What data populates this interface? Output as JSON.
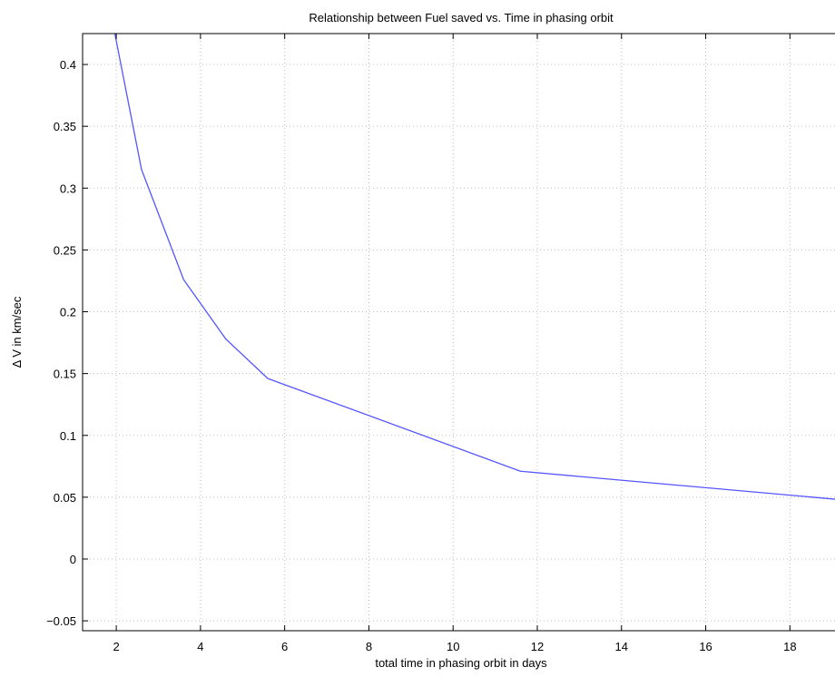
{
  "chart_data": {
    "type": "line",
    "title": "Relationship between Fuel saved vs. Time in phasing orbit",
    "xlabel": "total time in phasing orbit in days",
    "ylabel": "Δ V in km/sec",
    "xlim": [
      1.2,
      19.2
    ],
    "ylim": [
      -0.058,
      0.425
    ],
    "x_ticks": [
      2,
      4,
      6,
      8,
      10,
      12,
      14,
      16,
      18
    ],
    "x_tick_labels": [
      "2",
      "4",
      "6",
      "8",
      "10",
      "12",
      "14",
      "16",
      "18"
    ],
    "y_ticks": [
      -0.05,
      0,
      0.05,
      0.1,
      0.15,
      0.2,
      0.25,
      0.3,
      0.35,
      0.4
    ],
    "y_tick_labels": [
      "−0.05",
      "0",
      "0.05",
      "0.1",
      "0.15",
      "0.2",
      "0.25",
      "0.3",
      "0.35",
      "0.4"
    ],
    "grid": true,
    "series": [
      {
        "color": "#5555ff",
        "x": [
          1.96,
          2.6,
          3.6,
          4.6,
          5.6,
          11.6,
          19.2
        ],
        "y": [
          0.426,
          0.315,
          0.226,
          0.178,
          0.146,
          0.071,
          0.048
        ]
      }
    ]
  }
}
